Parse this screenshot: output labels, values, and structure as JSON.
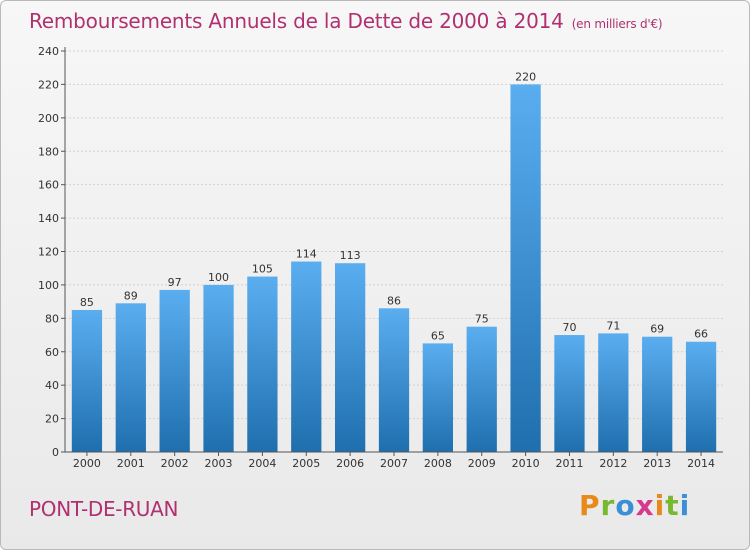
{
  "header": {
    "title": "Remboursements Annuels de la Dette de 2000 à 2014",
    "unit": "(en milliers d'€)"
  },
  "footer": {
    "city": "PONT-DE-RUAN",
    "logo": "Proxiti"
  },
  "colors": {
    "title": "#b03070",
    "bar_light": "#5aaef0",
    "bar_dark": "#1f6fae",
    "logo_letters": [
      "#e8891a",
      "#79b830",
      "#3a8fd6",
      "#d63a8f",
      "#e8891a",
      "#79b830",
      "#3a8fd6"
    ]
  },
  "chart_data": {
    "type": "bar",
    "categories": [
      "2000",
      "2001",
      "2002",
      "2003",
      "2004",
      "2005",
      "2006",
      "2007",
      "2008",
      "2009",
      "2010",
      "2011",
      "2012",
      "2013",
      "2014"
    ],
    "values": [
      85,
      89,
      97,
      100,
      105,
      114,
      113,
      86,
      65,
      75,
      220,
      70,
      71,
      69,
      66
    ],
    "ylim": [
      0,
      240
    ],
    "yticks": [
      0,
      20,
      40,
      60,
      80,
      100,
      120,
      140,
      160,
      180,
      200,
      220,
      240
    ],
    "grid": true,
    "legend": "none"
  }
}
